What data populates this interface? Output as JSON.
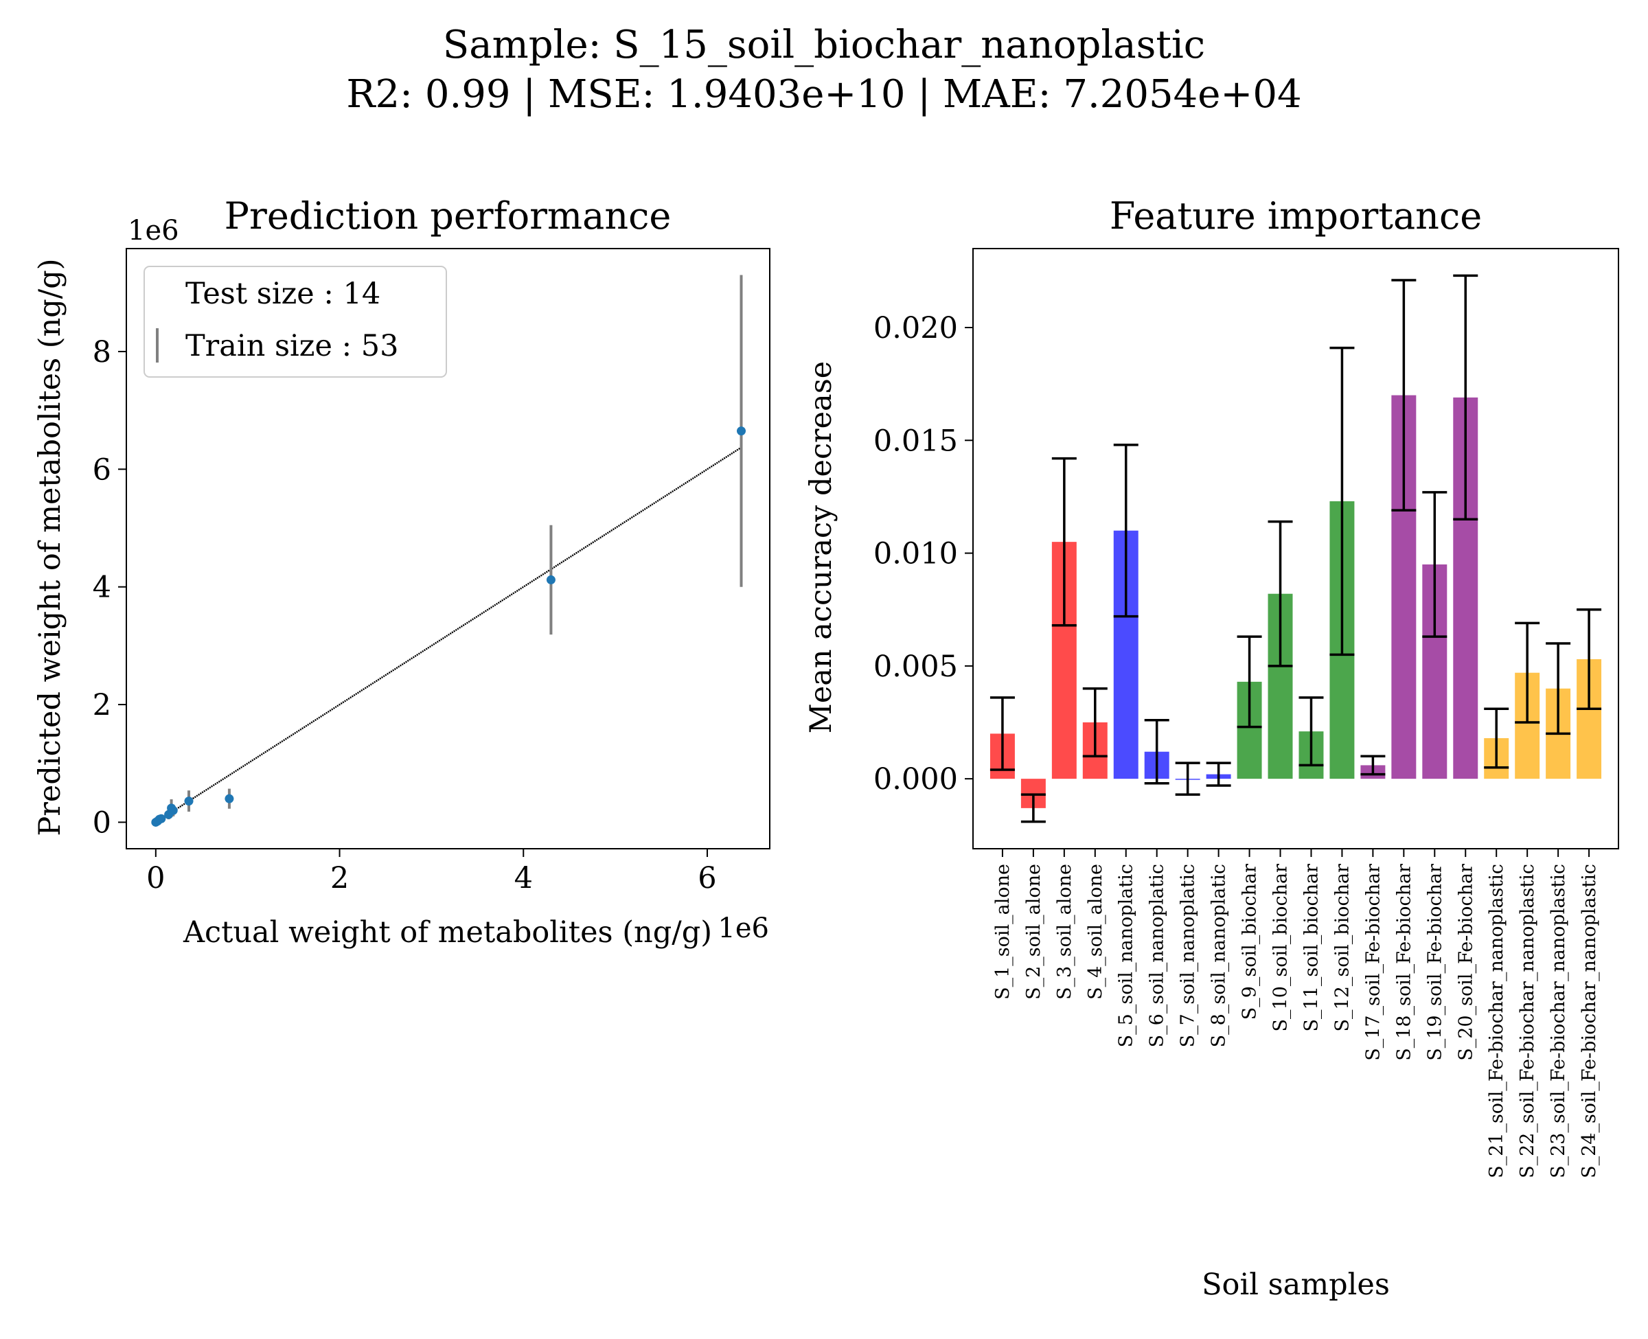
{
  "suptitle": {
    "line1": "Sample: S_15_soil_biochar_nanoplastic",
    "line2": "R2: 0.99 | MSE: 1.9403e+10 | MAE: 7.2054e+04"
  },
  "chart_data": [
    {
      "type": "scatter",
      "title": "Prediction performance",
      "xlabel": "Actual weight of metabolites (ng/g)",
      "ylabel": "Predicted weight of metabolites (ng/g)",
      "x_offset_text": "1e6",
      "y_offset_text": "1e6",
      "xlim": [
        -0.32,
        6.68
      ],
      "ylim": [
        -0.45,
        9.75
      ],
      "xticks": [
        0,
        2,
        4,
        6
      ],
      "yticks": [
        0,
        2,
        4,
        6,
        8
      ],
      "grid": false,
      "legend": {
        "placement": "upper-left",
        "entries": [
          "Test size : 14",
          "Train size : 53"
        ]
      },
      "colors": {
        "points": "#1f77b4",
        "errorbars": "#808080",
        "fitline": "#000000"
      },
      "fit_line": {
        "x": [
          0.0,
          6.37
        ],
        "y": [
          0.0,
          6.37
        ]
      },
      "points": [
        {
          "x": 0.0,
          "y": 0.0,
          "err": 0.03
        },
        {
          "x": 0.02,
          "y": 0.02,
          "err": 0.03
        },
        {
          "x": 0.04,
          "y": 0.05,
          "err": 0.04
        },
        {
          "x": 0.06,
          "y": 0.06,
          "err": 0.04
        },
        {
          "x": 0.14,
          "y": 0.13,
          "err": 0.08
        },
        {
          "x": 0.17,
          "y": 0.24,
          "err": 0.15
        },
        {
          "x": 0.19,
          "y": 0.2,
          "err": 0.1
        },
        {
          "x": 0.36,
          "y": 0.36,
          "err": 0.18
        },
        {
          "x": 0.8,
          "y": 0.4,
          "err": 0.17
        },
        {
          "x": 4.3,
          "y": 4.12,
          "err": 0.93
        },
        {
          "x": 6.37,
          "y": 6.65,
          "err": 2.65
        }
      ]
    },
    {
      "type": "bar",
      "title": "Feature importance",
      "xlabel": "Soil samples",
      "ylabel": "Mean accuracy decrease",
      "ylim": [
        -0.0031,
        0.0235
      ],
      "yticks": [
        "0.000",
        "0.005",
        "0.010",
        "0.015",
        "0.020"
      ],
      "yticks_values": [
        0,
        0.005,
        0.01,
        0.015,
        0.02
      ],
      "grid": false,
      "categories": [
        "S_1_soil_alone",
        "S_2_soil_alone",
        "S_3_soil_alone",
        "S_4_soil_alone",
        "S_5_soil_nanoplatic",
        "S_6_soil_nanoplatic",
        "S_7_soil_nanoplatic",
        "S_8_soil_nanoplatic",
        "S_9_soil_biochar",
        "S_10_soil_biochar",
        "S_11_soil_biochar",
        "S_12_soil_biochar",
        "S_17_soil_Fe-biochar",
        "S_18_soil_Fe-biochar",
        "S_19_soil_Fe-biochar",
        "S_20_soil_Fe-biochar",
        "S_21_soil_Fe-biochar_nanoplastic",
        "S_22_soil_Fe-biochar_nanoplastic",
        "S_23_soil_Fe-biochar_nanoplastic",
        "S_24_soil_Fe-biochar_nanoplastic"
      ],
      "values": [
        0.002,
        -0.0013,
        0.0105,
        0.0025,
        0.011,
        0.0012,
        0.0,
        0.0002,
        0.0043,
        0.0082,
        0.0021,
        0.0123,
        0.0006,
        0.017,
        0.0095,
        0.0169,
        0.0018,
        0.0047,
        0.004,
        0.0053
      ],
      "errors": [
        0.0016,
        0.0006,
        0.0037,
        0.0015,
        0.0038,
        0.0014,
        0.0007,
        0.0005,
        0.002,
        0.0032,
        0.0015,
        0.0068,
        0.0004,
        0.0051,
        0.0032,
        0.0054,
        0.0013,
        0.0022,
        0.002,
        0.0022
      ],
      "bar_colors": [
        "#ff4b4b",
        "#ff4b4b",
        "#ff4b4b",
        "#ff4b4b",
        "#4b4bff",
        "#4b4bff",
        "#4b4bff",
        "#4b4bff",
        "#4ca64c",
        "#4ca64c",
        "#4ca64c",
        "#4ca64c",
        "#a64ca6",
        "#a64ca6",
        "#a64ca6",
        "#a64ca6",
        "#ffc34b",
        "#ffc34b",
        "#ffc34b",
        "#ffc34b"
      ],
      "errorbar_color": "#000000"
    }
  ]
}
